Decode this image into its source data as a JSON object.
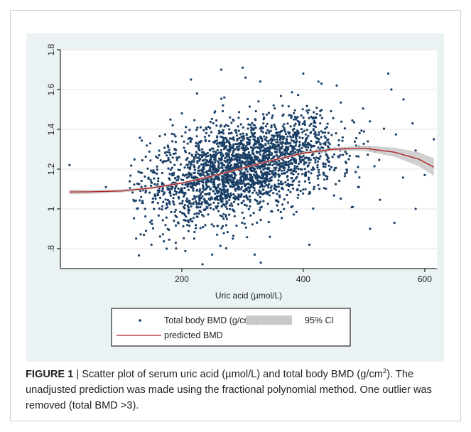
{
  "chart_data": {
    "type": "scatter",
    "xlabel": "Uric acid (µmol/L)",
    "ylabel": "",
    "xlim": [
      0,
      620
    ],
    "ylim": [
      0.7,
      1.8
    ],
    "xticks": [
      200,
      400,
      600
    ],
    "yticks": [
      0.8,
      1.0,
      1.2,
      1.4,
      1.6,
      1.8
    ],
    "xtick_labels": [
      "200",
      "400",
      "600"
    ],
    "ytick_labels": [
      ".8",
      "1",
      "1.2",
      "1.4",
      "1.6",
      "1.8"
    ],
    "grid": "horizontal",
    "legend_position": "bottom",
    "colors": {
      "points": "#1a3f66",
      "fit": "#b22222",
      "ci": "#c8c8c8",
      "plot_background": "#eaf2f3",
      "gridline": "#ffffff"
    },
    "series": [
      {
        "name": "Total body BMD (g/cm2)",
        "type": "scatter",
        "point_count_approx": 2500,
        "spread_points": [
          [
            15,
            1.22
          ],
          [
            75,
            1.11
          ],
          [
            150,
            0.82
          ],
          [
            175,
            0.8
          ],
          [
            185,
            1.42
          ],
          [
            190,
            0.83
          ],
          [
            200,
            1.48
          ],
          [
            215,
            1.65
          ],
          [
            225,
            1.58
          ],
          [
            250,
            0.77
          ],
          [
            265,
            1.7
          ],
          [
            270,
            1.56
          ],
          [
            300,
            1.71
          ],
          [
            305,
            1.66
          ],
          [
            320,
            0.77
          ],
          [
            330,
            0.73
          ],
          [
            345,
            0.86
          ],
          [
            400,
            1.68
          ],
          [
            410,
            0.82
          ],
          [
            425,
            1.64
          ],
          [
            430,
            1.63
          ],
          [
            455,
            1.62
          ],
          [
            510,
            0.9
          ],
          [
            540,
            1.68
          ],
          [
            545,
            1.6
          ],
          [
            550,
            0.93
          ],
          [
            565,
            1.55
          ],
          [
            580,
            1.43
          ],
          [
            585,
            1.0
          ],
          [
            600,
            1.17
          ],
          [
            615,
            1.35
          ]
        ]
      },
      {
        "name": "predicted BMD",
        "type": "line",
        "x": [
          15,
          50,
          100,
          150,
          200,
          250,
          300,
          350,
          400,
          450,
          500,
          550,
          590,
          615
        ],
        "y": [
          1.085,
          1.086,
          1.09,
          1.105,
          1.13,
          1.165,
          1.205,
          1.245,
          1.28,
          1.3,
          1.305,
          1.285,
          1.25,
          1.21
        ]
      },
      {
        "name": "95% CI",
        "type": "band",
        "x": [
          15,
          50,
          100,
          150,
          200,
          250,
          300,
          350,
          400,
          450,
          500,
          550,
          590,
          615
        ],
        "lower": [
          1.073,
          1.076,
          1.082,
          1.099,
          1.125,
          1.16,
          1.2,
          1.24,
          1.274,
          1.292,
          1.292,
          1.262,
          1.215,
          1.165
        ],
        "upper": [
          1.097,
          1.096,
          1.098,
          1.111,
          1.135,
          1.17,
          1.21,
          1.25,
          1.286,
          1.308,
          1.318,
          1.308,
          1.285,
          1.255
        ]
      }
    ]
  },
  "legend": {
    "scatter_label": "Total body BMD (g/cm2)",
    "ci_label": "95% CI",
    "line_label": "predicted BMD"
  },
  "caption": {
    "label": "FIGURE 1",
    "separator": " | ",
    "text_a": "Scatter plot of serum uric acid (µmol/L) and total body BMD (g/cm",
    "superscript": "2",
    "text_b": "). The unadjusted prediction was made using the fractional polynomial method. One outlier was removed (total BMD >3)."
  }
}
